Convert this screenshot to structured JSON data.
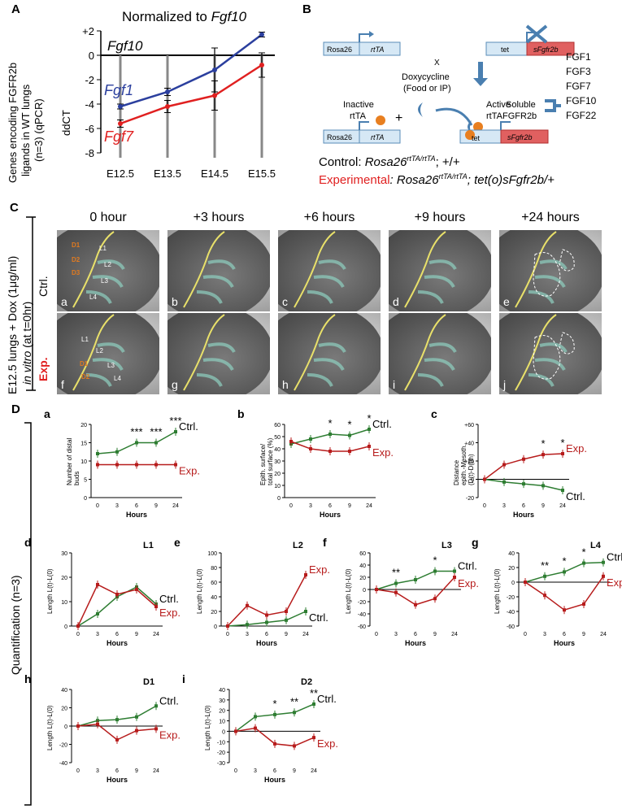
{
  "panelA": {
    "letter": "A",
    "title_prefix": "Normalized to ",
    "title_gene": "Fgf10",
    "ylabel": [
      "Genes encoding FGFR2b",
      "ligands in WT lungs",
      "(n=3) (qPCR)",
      "ddCT"
    ],
    "chart_data": {
      "type": "line",
      "title": "Normalized to Fgf10",
      "categories": [
        "E12.5",
        "E13.5",
        "E14.5",
        "E15.5"
      ],
      "yticks": [
        "+2",
        "0",
        "-2",
        "-4",
        "-6",
        "-8"
      ],
      "ylim": [
        -8,
        2
      ],
      "series": [
        {
          "name": "Fgf10",
          "color": "#000000",
          "values": [
            0,
            0,
            0,
            0
          ]
        },
        {
          "name": "Fgf1",
          "color": "#2b3f9e",
          "values": [
            -4.2,
            -3.0,
            -1.2,
            1.7
          ],
          "err": [
            0.2,
            0.3,
            1.8,
            0.2
          ]
        },
        {
          "name": "Fgf7",
          "color": "#e02020",
          "values": [
            -5.6,
            -4.2,
            -3.3,
            -0.8
          ],
          "err": [
            0.3,
            0.5,
            1.2,
            1.0
          ]
        }
      ]
    }
  },
  "panelB": {
    "letter": "B",
    "rosa26": "Rosa26",
    "rttA": "rtTA",
    "tet": "tet",
    "sFgfr2b": "sFgfr2b",
    "x": "X",
    "dox": [
      "Doxycycline",
      "(Food or IP)"
    ],
    "plus": "+",
    "inactive": [
      "Inactive",
      "rtTA"
    ],
    "active": [
      "Active",
      "rtTA"
    ],
    "soluble": [
      "Soluble",
      "FGFR2b"
    ],
    "ligands": [
      "FGF1",
      "FGF3",
      "FGF7",
      "FGF10",
      "FGF22"
    ],
    "control_label": "Control: ",
    "control_geno": "Rosa26",
    "control_sup": "rtTA/rtTA",
    "control_rest": "; +/+",
    "exp_label": "Experimental",
    "exp_geno": ": Rosa26",
    "exp_sup": "rtTA/rtTA",
    "exp_rest": "; tet(o)sFgfr2b/+"
  },
  "panelC": {
    "letter": "C",
    "side_label_1": "E12.5 lungs + Dox (1μg/ml)",
    "side_label_2": "in vitro",
    "side_label_3": " (at t=0hr)",
    "row_ctrl": "Ctrl.",
    "row_exp": "Exp.",
    "times": [
      "0 hour",
      "+3 hours",
      "+6 hours",
      "+9 hours",
      "+24 hours"
    ],
    "top_letters": [
      "a",
      "b",
      "c",
      "d",
      "e"
    ],
    "bottom_letters": [
      "f",
      "g",
      "h",
      "i",
      "j"
    ],
    "top_tags": [
      "D1",
      "D2",
      "D3",
      "L1",
      "L2",
      "L3",
      "L4"
    ],
    "bottom_tags": [
      "L1",
      "L2",
      "L3",
      "L4",
      "D1",
      "D2"
    ]
  },
  "panelD": {
    "letter": "D",
    "side_label": "Quantification (n=3)",
    "ctrl_label": "Ctrl.",
    "exp_label": "Exp.",
    "ctrl_color": "#2e7d32",
    "exp_color": "#b71c1c",
    "xcats": [
      "0",
      "3",
      "6",
      "9",
      "24"
    ],
    "xlabel": "Hours",
    "charts": [
      {
        "id": "a",
        "ylabel": [
          "Number of distal",
          "buds"
        ],
        "yticks": [
          "0",
          "5",
          "10",
          "15",
          "20"
        ],
        "ylim": [
          0,
          20
        ],
        "ctrl": [
          12,
          12.5,
          15,
          15,
          18
        ],
        "exp": [
          9,
          9,
          9,
          9,
          9
        ],
        "stars": [
          "",
          "",
          "***",
          "***",
          "***"
        ],
        "title": ""
      },
      {
        "id": "b",
        "ylabel": [
          "Epith. surface/",
          "total surface (%)"
        ],
        "yticks": [
          "0",
          "10",
          "20",
          "30",
          "40",
          "50",
          "60"
        ],
        "ylim": [
          0,
          60
        ],
        "ctrl": [
          44,
          48,
          52,
          51,
          56
        ],
        "exp": [
          46,
          40,
          38,
          38,
          42
        ],
        "stars": [
          "",
          "",
          "*",
          "*",
          "*"
        ],
        "title": ""
      },
      {
        "id": "c",
        "ylabel": [
          "Distance",
          "epith.-Mesoth.",
          "(D(t)-D(0h)"
        ],
        "yticks": [
          "-20",
          "0",
          "+20",
          "+40",
          "+60"
        ],
        "ylim": [
          -20,
          60
        ],
        "ctrl": [
          0,
          -3,
          -5,
          -7,
          -12
        ],
        "exp": [
          0,
          16,
          22,
          27,
          28
        ],
        "stars": [
          "",
          "",
          "",
          "*",
          "*"
        ],
        "title": ""
      },
      {
        "id": "d",
        "ylabel": [
          "Length L(t)-L(0)"
        ],
        "yticks": [
          "0",
          "10",
          "20",
          "30"
        ],
        "ylim": [
          0,
          30
        ],
        "ctrl": [
          0,
          5,
          12,
          16,
          9
        ],
        "exp": [
          0,
          17,
          13,
          15,
          8
        ],
        "stars": [
          "",
          "",
          "",
          "",
          ""
        ],
        "title": "L1"
      },
      {
        "id": "e",
        "ylabel": [
          "Length L(t)-L(0)"
        ],
        "yticks": [
          "0",
          "20",
          "40",
          "60",
          "80",
          "100"
        ],
        "ylim": [
          0,
          100
        ],
        "ctrl": [
          0,
          2,
          5,
          8,
          20
        ],
        "exp": [
          0,
          28,
          15,
          20,
          70
        ],
        "stars": [
          "",
          "",
          "",
          "",
          ""
        ],
        "title": "L2"
      },
      {
        "id": "f",
        "ylabel": [
          "Length L(t)-L(0)"
        ],
        "yticks": [
          "-60",
          "-40",
          "-20",
          "0",
          "20",
          "40",
          "60"
        ],
        "ylim": [
          -60,
          60
        ],
        "ctrl": [
          0,
          10,
          16,
          30,
          30
        ],
        "exp": [
          0,
          -5,
          -25,
          -15,
          20
        ],
        "stars": [
          "",
          "**",
          "",
          "*",
          ""
        ],
        "title": "L3"
      },
      {
        "id": "g",
        "ylabel": [
          "Length L(t)-L(0)"
        ],
        "yticks": [
          "-60",
          "-40",
          "-20",
          "0",
          "20",
          "40"
        ],
        "ylim": [
          -60,
          40
        ],
        "ctrl": [
          0,
          8,
          14,
          26,
          27
        ],
        "exp": [
          0,
          -18,
          -38,
          -30,
          8
        ],
        "stars": [
          "",
          "**",
          "*",
          "*",
          ""
        ],
        "title": "L4"
      },
      {
        "id": "h",
        "ylabel": [
          "Length L(t)-L(0)"
        ],
        "yticks": [
          "-40",
          "-20",
          "0",
          "20",
          "40"
        ],
        "ylim": [
          -40,
          40
        ],
        "ctrl": [
          0,
          6,
          7,
          10,
          22
        ],
        "exp": [
          0,
          2,
          -15,
          -5,
          -3
        ],
        "stars": [
          "",
          "",
          "",
          "",
          ""
        ],
        "title": "D1"
      },
      {
        "id": "i",
        "ylabel": [
          "Length L(t)-L(0)"
        ],
        "yticks": [
          "-30",
          "-20",
          "-10",
          "0",
          "10",
          "20",
          "30",
          "40"
        ],
        "ylim": [
          -30,
          40
        ],
        "ctrl": [
          0,
          14,
          16,
          18,
          26
        ],
        "exp": [
          0,
          3,
          -12,
          -14,
          -6
        ],
        "stars": [
          "",
          "",
          "*",
          "**",
          "**"
        ],
        "title": "D2"
      }
    ]
  }
}
